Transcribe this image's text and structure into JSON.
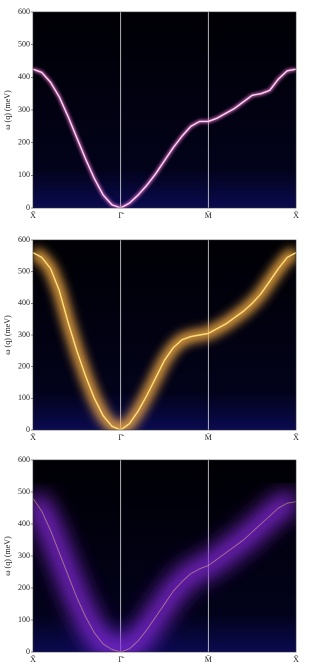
{
  "chart_data": [
    {
      "type": "line",
      "ylabel": "ω (q) (meV)",
      "categories": [
        "X̄",
        null,
        null,
        null,
        null,
        null,
        null,
        null,
        null,
        null,
        "Γ̄",
        null,
        null,
        null,
        null,
        null,
        null,
        null,
        null,
        null,
        "M̄",
        null,
        null,
        null,
        null,
        null,
        null,
        null,
        null,
        null,
        "X̄"
      ],
      "values": [
        425,
        415,
        385,
        340,
        280,
        215,
        150,
        90,
        40,
        10,
        0,
        15,
        40,
        70,
        105,
        145,
        185,
        220,
        250,
        265,
        265,
        275,
        290,
        305,
        325,
        345,
        350,
        360,
        395,
        420,
        425
      ],
      "color": "#ff7ad9",
      "ylim": [
        0,
        600
      ],
      "yticks": [
        0,
        100,
        200,
        300,
        400,
        500,
        600
      ]
    },
    {
      "type": "line",
      "ylabel": "ω (q) (meV)",
      "categories": [
        "X̄",
        null,
        null,
        null,
        null,
        null,
        null,
        null,
        null,
        null,
        "Γ̄",
        null,
        null,
        null,
        null,
        null,
        null,
        null,
        null,
        null,
        "M̄",
        null,
        null,
        null,
        null,
        null,
        null,
        null,
        null,
        null,
        "X̄"
      ],
      "values": [
        560,
        545,
        510,
        440,
        340,
        250,
        170,
        100,
        45,
        12,
        0,
        20,
        60,
        110,
        165,
        220,
        260,
        285,
        295,
        300,
        305,
        320,
        335,
        355,
        375,
        400,
        430,
        470,
        510,
        545,
        560
      ],
      "color": "#ffb347",
      "ylim": [
        0,
        600
      ],
      "yticks": [
        0,
        100,
        200,
        300,
        400,
        500,
        600
      ]
    },
    {
      "type": "line",
      "ylabel": "ω (q) (meV)",
      "categories": [
        "X̄",
        null,
        null,
        null,
        null,
        null,
        null,
        null,
        null,
        null,
        "Γ̄",
        null,
        null,
        null,
        null,
        null,
        null,
        null,
        null,
        null,
        "M̄",
        null,
        null,
        null,
        null,
        null,
        null,
        null,
        null,
        null,
        "X̄"
      ],
      "values": [
        480,
        440,
        380,
        310,
        240,
        170,
        110,
        60,
        25,
        8,
        0,
        10,
        35,
        70,
        110,
        150,
        190,
        220,
        245,
        260,
        270,
        290,
        310,
        330,
        350,
        375,
        400,
        425,
        450,
        465,
        470
      ],
      "color": "#8a2be2",
      "ylim": [
        0,
        600
      ],
      "yticks": [
        0,
        100,
        200,
        300,
        400,
        500,
        600
      ]
    }
  ]
}
